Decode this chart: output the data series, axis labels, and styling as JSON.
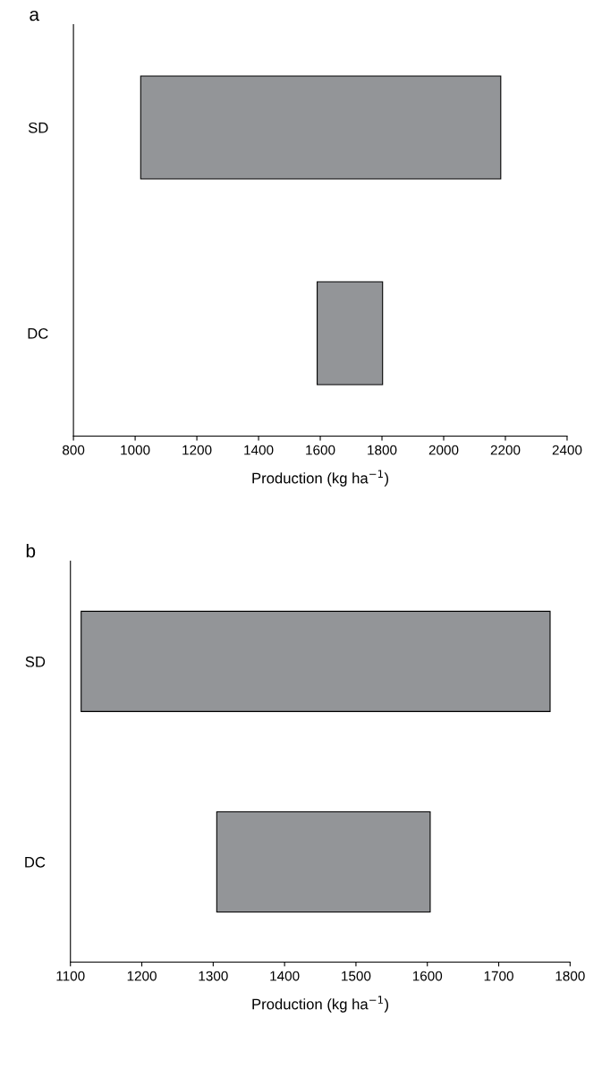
{
  "chart_data": [
    {
      "type": "bar",
      "orientation": "horizontal",
      "title": "a",
      "xlabel": "Production (kg ha$^{−1}$)",
      "categories": [
        "SD",
        "DC"
      ],
      "base": [
        1018,
        1590
      ],
      "values": [
        1167,
        212
      ],
      "color": "#939598",
      "xlim": [
        800,
        2400
      ],
      "xticks": [
        800,
        1000,
        1200,
        1400,
        1600,
        1800,
        2000,
        2200,
        2400
      ],
      "grid": false
    },
    {
      "type": "bar",
      "orientation": "horizontal",
      "title": "b",
      "xlabel": "Production (kg ha$^{−1}$)",
      "categories": [
        "SD",
        "DC"
      ],
      "base": [
        1115,
        1305
      ],
      "values": [
        657,
        299
      ],
      "color": "#939598",
      "xlim": [
        1100,
        1800
      ],
      "xticks": [
        1100,
        1200,
        1300,
        1400,
        1500,
        1600,
        1700,
        1800
      ],
      "grid": false
    }
  ]
}
